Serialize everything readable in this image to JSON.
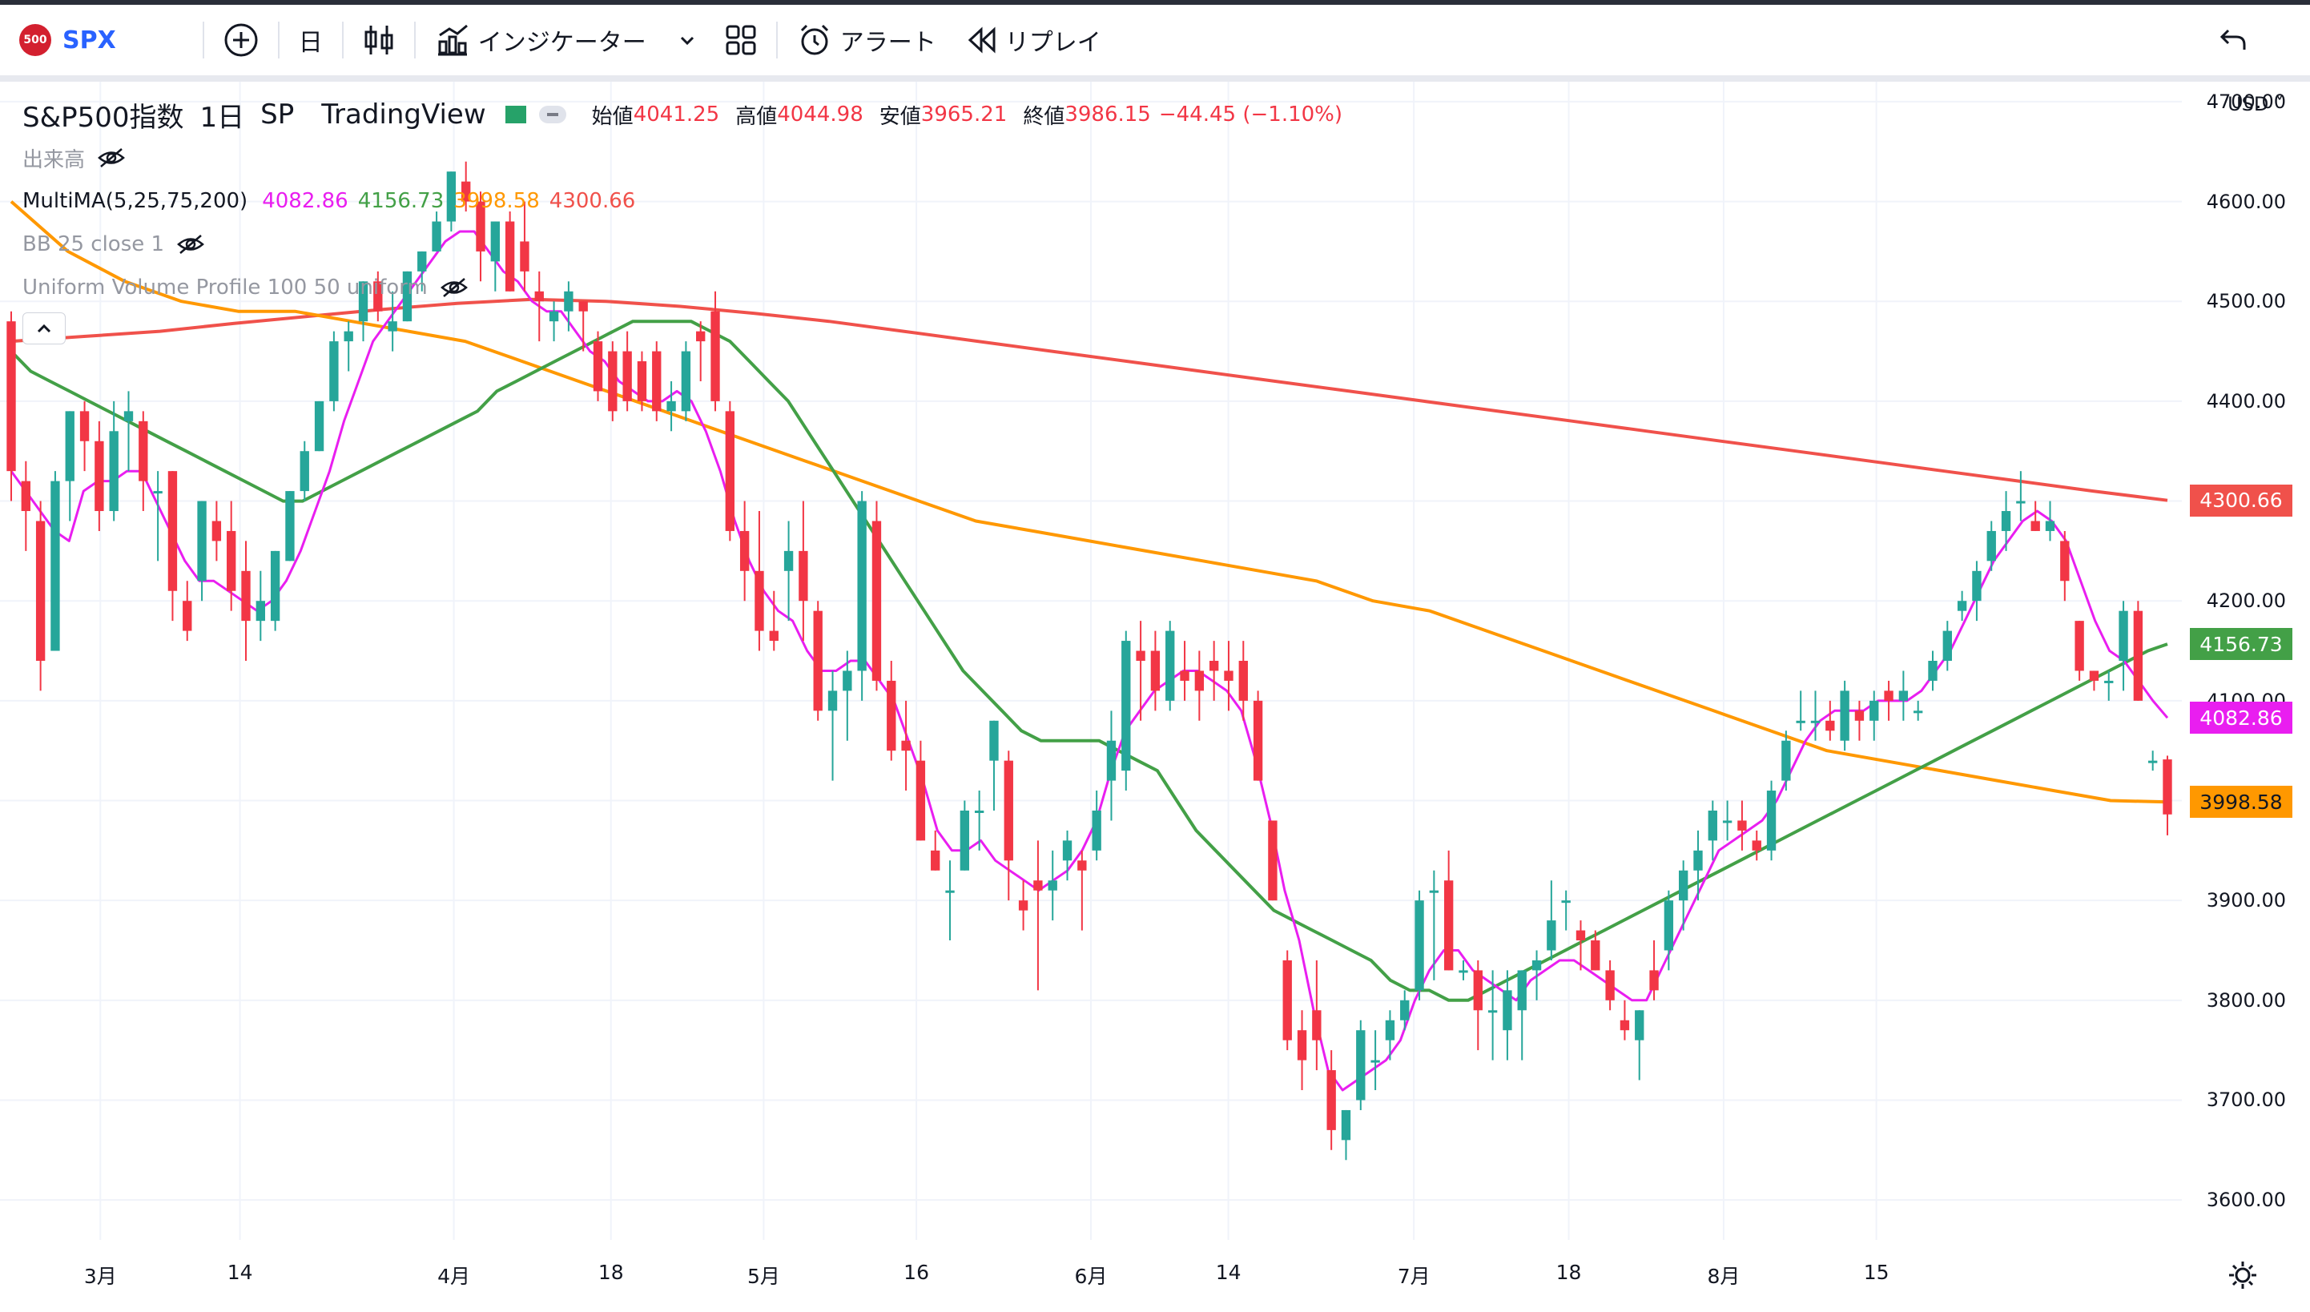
{
  "toolbar": {
    "symbol_badge": "500",
    "symbol": "SPX",
    "interval": "日",
    "indicators_label": "インジケーター",
    "alert_label": "アラート",
    "replay_label": "リプレイ"
  },
  "legend": {
    "instrument": "S&P500指数",
    "interval": "1日",
    "exchange": "SP",
    "source": "TradingView",
    "open_label": "始値",
    "open": "4041.25",
    "high_label": "高値",
    "high": "4044.98",
    "low_label": "安値",
    "low": "3965.21",
    "close_label": "終値",
    "close": "3986.15",
    "change": "−44.45 (−1.10%)",
    "volume_label": "出来高",
    "ma_label": "MultiMA(5,25,75,200)",
    "ma5": "4082.86",
    "ma25": "4156.73",
    "ma75": "3998.58",
    "ma200": "4300.66",
    "bb_label": "BB 25 close 1",
    "vp_label": "Uniform Volume Profile 100 50 uniform"
  },
  "price_axis": {
    "currency": "USD",
    "labels": [
      "4700.00",
      "4600.00",
      "4500.00",
      "4400.00",
      "4300.00",
      "4200.00",
      "4100.00",
      "3900.00",
      "3800.00",
      "3700.00",
      "3600.00"
    ],
    "tag_ma200": "4300.66",
    "tag_ma25": "4156.73",
    "tag_ma5": "4082.86",
    "tag_ma75": "3998.58"
  },
  "time_axis": {
    "labels": [
      "3月",
      "14",
      "4月",
      "18",
      "5月",
      "16",
      "6月",
      "14",
      "7月",
      "18",
      "8月",
      "15"
    ]
  },
  "colors": {
    "up": "#26a69a",
    "down": "#f23645",
    "ma5": "#e91ef0",
    "ma25": "#43a047",
    "ma75": "#ff9800",
    "ma200": "#f0514b"
  },
  "chart_data": {
    "type": "candlestick",
    "y_range": [
      3560,
      4720
    ],
    "candles": [
      [
        4480,
        4490,
        4300,
        4330
      ],
      [
        4320,
        4340,
        4250,
        4290
      ],
      [
        4280,
        4300,
        4110,
        4140
      ],
      [
        4150,
        4330,
        4150,
        4320
      ],
      [
        4320,
        4390,
        4280,
        4390
      ],
      [
        4390,
        4400,
        4330,
        4360
      ],
      [
        4360,
        4380,
        4270,
        4290
      ],
      [
        4290,
        4400,
        4280,
        4370
      ],
      [
        4380,
        4410,
        4330,
        4390
      ],
      [
        4380,
        4390,
        4290,
        4320
      ],
      [
        4310,
        4330,
        4240,
        4310
      ],
      [
        4330,
        4330,
        4180,
        4210
      ],
      [
        4200,
        4220,
        4160,
        4170
      ],
      [
        4220,
        4300,
        4200,
        4300
      ],
      [
        4280,
        4300,
        4240,
        4260
      ],
      [
        4270,
        4300,
        4190,
        4210
      ],
      [
        4230,
        4260,
        4140,
        4180
      ],
      [
        4180,
        4230,
        4160,
        4200
      ],
      [
        4180,
        4250,
        4170,
        4250
      ],
      [
        4240,
        4310,
        4240,
        4310
      ],
      [
        4310,
        4360,
        4300,
        4350
      ],
      [
        4350,
        4400,
        4350,
        4400
      ],
      [
        4400,
        4470,
        4390,
        4460
      ],
      [
        4460,
        4480,
        4430,
        4470
      ],
      [
        4480,
        4520,
        4460,
        4520
      ],
      [
        4520,
        4530,
        4480,
        4490
      ],
      [
        4470,
        4510,
        4450,
        4480
      ],
      [
        4480,
        4530,
        4480,
        4530
      ],
      [
        4530,
        4550,
        4510,
        4550
      ],
      [
        4550,
        4590,
        4550,
        4580
      ],
      [
        4580,
        4630,
        4570,
        4630
      ],
      [
        4620,
        4640,
        4590,
        4600
      ],
      [
        4600,
        4610,
        4520,
        4550
      ],
      [
        4540,
        4580,
        4510,
        4580
      ],
      [
        4580,
        4590,
        4510,
        4510
      ],
      [
        4560,
        4600,
        4510,
        4530
      ],
      [
        4510,
        4530,
        4460,
        4500
      ],
      [
        4480,
        4500,
        4460,
        4490
      ],
      [
        4490,
        4520,
        4470,
        4510
      ],
      [
        4500,
        4500,
        4450,
        4490
      ],
      [
        4460,
        4470,
        4400,
        4410
      ],
      [
        4450,
        4460,
        4380,
        4390
      ],
      [
        4450,
        4470,
        4390,
        4400
      ],
      [
        4440,
        4450,
        4390,
        4400
      ],
      [
        4450,
        4460,
        4380,
        4390
      ],
      [
        4390,
        4420,
        4370,
        4400
      ],
      [
        4390,
        4460,
        4380,
        4450
      ],
      [
        4470,
        4480,
        4420,
        4460
      ],
      [
        4490,
        4510,
        4390,
        4400
      ],
      [
        4390,
        4400,
        4260,
        4270
      ],
      [
        4270,
        4300,
        4200,
        4230
      ],
      [
        4230,
        4290,
        4150,
        4170
      ],
      [
        4170,
        4210,
        4150,
        4160
      ],
      [
        4230,
        4280,
        4180,
        4250
      ],
      [
        4250,
        4300,
        4160,
        4200
      ],
      [
        4190,
        4200,
        4080,
        4090
      ],
      [
        4090,
        4130,
        4020,
        4110
      ],
      [
        4110,
        4150,
        4060,
        4130
      ],
      [
        4130,
        4310,
        4100,
        4300
      ],
      [
        4280,
        4300,
        4110,
        4120
      ],
      [
        4120,
        4140,
        4040,
        4050
      ],
      [
        4060,
        4100,
        4010,
        4050
      ],
      [
        4040,
        4060,
        3960,
        3960
      ],
      [
        3950,
        3970,
        3930,
        3930
      ],
      [
        3910,
        3940,
        3860,
        3910
      ],
      [
        3930,
        4000,
        3930,
        3990
      ],
      [
        3990,
        4010,
        3950,
        3990
      ],
      [
        4040,
        4080,
        3990,
        4080
      ],
      [
        4040,
        4050,
        3900,
        3940
      ],
      [
        3900,
        3920,
        3870,
        3890
      ],
      [
        3920,
        3960,
        3810,
        3910
      ],
      [
        3910,
        3950,
        3880,
        3920
      ],
      [
        3940,
        3970,
        3920,
        3960
      ],
      [
        3940,
        3950,
        3870,
        3930
      ],
      [
        3950,
        4010,
        3940,
        3990
      ],
      [
        4020,
        4090,
        3980,
        4060
      ],
      [
        4030,
        4170,
        4010,
        4160
      ],
      [
        4150,
        4180,
        4080,
        4140
      ],
      [
        4150,
        4170,
        4090,
        4110
      ],
      [
        4100,
        4180,
        4090,
        4170
      ],
      [
        4130,
        4160,
        4100,
        4120
      ],
      [
        4130,
        4150,
        4080,
        4110
      ],
      [
        4140,
        4160,
        4100,
        4130
      ],
      [
        4130,
        4160,
        4090,
        4120
      ],
      [
        4140,
        4160,
        4080,
        4100
      ],
      [
        4100,
        4110,
        4020,
        4020
      ],
      [
        3980,
        3980,
        3900,
        3900
      ],
      [
        3840,
        3850,
        3750,
        3760
      ],
      [
        3770,
        3790,
        3710,
        3740
      ],
      [
        3790,
        3840,
        3730,
        3760
      ],
      [
        3730,
        3750,
        3650,
        3670
      ],
      [
        3660,
        3690,
        3640,
        3690
      ],
      [
        3700,
        3780,
        3690,
        3770
      ],
      [
        3740,
        3770,
        3710,
        3740
      ],
      [
        3760,
        3790,
        3740,
        3780
      ],
      [
        3780,
        3810,
        3770,
        3800
      ],
      [
        3810,
        3910,
        3800,
        3900
      ],
      [
        3910,
        3930,
        3820,
        3910
      ],
      [
        3920,
        3950,
        3830,
        3830
      ],
      [
        3830,
        3840,
        3820,
        3830
      ],
      [
        3830,
        3840,
        3750,
        3790
      ],
      [
        3790,
        3830,
        3740,
        3790
      ],
      [
        3770,
        3830,
        3740,
        3810
      ],
      [
        3790,
        3830,
        3740,
        3830
      ],
      [
        3830,
        3850,
        3800,
        3840
      ],
      [
        3850,
        3920,
        3840,
        3880
      ],
      [
        3900,
        3910,
        3870,
        3900
      ],
      [
        3870,
        3880,
        3830,
        3860
      ],
      [
        3860,
        3870,
        3830,
        3830
      ],
      [
        3830,
        3840,
        3790,
        3800
      ],
      [
        3780,
        3800,
        3760,
        3770
      ],
      [
        3760,
        3790,
        3720,
        3790
      ],
      [
        3830,
        3860,
        3800,
        3810
      ],
      [
        3850,
        3910,
        3830,
        3900
      ],
      [
        3900,
        3940,
        3870,
        3930
      ],
      [
        3930,
        3970,
        3900,
        3950
      ],
      [
        3960,
        4000,
        3940,
        3990
      ],
      [
        3980,
        4000,
        3960,
        3980
      ],
      [
        3980,
        4000,
        3950,
        3970
      ],
      [
        3960,
        3970,
        3940,
        3950
      ],
      [
        3950,
        4020,
        3940,
        4010
      ],
      [
        4020,
        4070,
        4010,
        4060
      ],
      [
        4080,
        4110,
        4070,
        4080
      ],
      [
        4080,
        4110,
        4060,
        4080
      ],
      [
        4080,
        4100,
        4060,
        4070
      ],
      [
        4060,
        4120,
        4050,
        4110
      ],
      [
        4090,
        4100,
        4060,
        4080
      ],
      [
        4080,
        4110,
        4060,
        4100
      ],
      [
        4110,
        4120,
        4080,
        4100
      ],
      [
        4100,
        4130,
        4080,
        4110
      ],
      [
        4090,
        4100,
        4080,
        4090
      ],
      [
        4120,
        4150,
        4110,
        4140
      ],
      [
        4140,
        4180,
        4130,
        4170
      ],
      [
        4190,
        4210,
        4180,
        4200
      ],
      [
        4200,
        4240,
        4180,
        4230
      ],
      [
        4240,
        4280,
        4230,
        4270
      ],
      [
        4270,
        4310,
        4250,
        4290
      ],
      [
        4300,
        4330,
        4280,
        4300
      ],
      [
        4280,
        4300,
        4270,
        4270
      ],
      [
        4270,
        4300,
        4260,
        4280
      ],
      [
        4260,
        4270,
        4200,
        4220
      ],
      [
        4180,
        4180,
        4120,
        4130
      ],
      [
        4130,
        4130,
        4110,
        4120
      ],
      [
        4120,
        4130,
        4100,
        4120
      ],
      [
        4140,
        4200,
        4110,
        4190
      ],
      [
        4190,
        4200,
        4100,
        4100
      ],
      [
        4040,
        4050,
        4030,
        4040
      ],
      [
        4041.25,
        4044.98,
        3965.21,
        3986.15
      ]
    ],
    "ma5": [
      4330,
      4310,
      4290,
      4270,
      4260,
      4310,
      4320,
      4320,
      4330,
      4330,
      4300,
      4270,
      4240,
      4220,
      4220,
      4210,
      4200,
      4190,
      4200,
      4220,
      4250,
      4290,
      4330,
      4380,
      4420,
      4460,
      4480,
      4500,
      4520,
      4540,
      4560,
      4570,
      4570,
      4550,
      4530,
      4520,
      4500,
      4490,
      4490,
      4470,
      4450,
      4440,
      4420,
      4410,
      4400,
      4400,
      4410,
      4400,
      4370,
      4330,
      4280,
      4240,
      4210,
      4190,
      4180,
      4150,
      4130,
      4130,
      4140,
      4140,
      4120,
      4100,
      4060,
      4020,
      3970,
      3950,
      3950,
      3960,
      3940,
      3930,
      3920,
      3910,
      3920,
      3930,
      3950,
      3980,
      4030,
      4070,
      4090,
      4110,
      4120,
      4130,
      4130,
      4120,
      4110,
      4090,
      4040,
      3980,
      3910,
      3860,
      3790,
      3730,
      3710,
      3720,
      3730,
      3740,
      3760,
      3800,
      3830,
      3850,
      3850,
      3830,
      3820,
      3810,
      3800,
      3820,
      3830,
      3840,
      3840,
      3830,
      3820,
      3810,
      3800,
      3800,
      3830,
      3860,
      3890,
      3920,
      3950,
      3960,
      3970,
      3980,
      4000,
      4030,
      4060,
      4080,
      4090,
      4090,
      4090,
      4100,
      4100,
      4100,
      4110,
      4130,
      4150,
      4180,
      4210,
      4240,
      4260,
      4280,
      4290,
      4280,
      4260,
      4220,
      4180,
      4150,
      4140,
      4120,
      4100,
      4082.86
    ],
    "ma25": [
      4450,
      4430,
      4420,
      4410,
      4400,
      4390,
      4380,
      4370,
      4360,
      4350,
      4340,
      4330,
      4320,
      4310,
      4300,
      4300,
      4310,
      4320,
      4330,
      4340,
      4350,
      4360,
      4370,
      4380,
      4390,
      4410,
      4420,
      4430,
      4440,
      4450,
      4460,
      4470,
      4480,
      4480,
      4480,
      4480,
      4470,
      4460,
      4440,
      4420,
      4400,
      4370,
      4340,
      4310,
      4280,
      4250,
      4220,
      4190,
      4160,
      4130,
      4110,
      4090,
      4070,
      4060,
      4060,
      4060,
      4060,
      4050,
      4040,
      4030,
      4000,
      3970,
      3950,
      3930,
      3910,
      3890,
      3880,
      3870,
      3860,
      3850,
      3840,
      3820,
      3810,
      3810,
      3800,
      3800,
      3810,
      3820,
      3830,
      3840,
      3850,
      3860,
      3870,
      3880,
      3890,
      3900,
      3910,
      3920,
      3930,
      3940,
      3950,
      3960,
      3970,
      3980,
      3990,
      4000,
      4010,
      4020,
      4030,
      4040,
      4050,
      4060,
      4070,
      4080,
      4090,
      4100,
      4110,
      4120,
      4130,
      4140,
      4150,
      4156.73
    ],
    "ma75": [
      4600,
      4550,
      4520,
      4500,
      4490,
      4490,
      4480,
      4470,
      4460,
      4440,
      4420,
      4400,
      4380,
      4360,
      4340,
      4320,
      4300,
      4280,
      4270,
      4260,
      4250,
      4240,
      4230,
      4220,
      4200,
      4190,
      4170,
      4150,
      4130,
      4110,
      4090,
      4070,
      4050,
      4040,
      4030,
      4020,
      4010,
      4000,
      3998.58
    ],
    "ma200": [
      4460,
      4465,
      4470,
      4478,
      4485,
      4492,
      4498,
      4502,
      4500,
      4495,
      4488,
      4480,
      4470,
      4460,
      4450,
      4440,
      4430,
      4420,
      4410,
      4400,
      4390,
      4380,
      4370,
      4360,
      4350,
      4340,
      4330,
      4320,
      4310,
      4300.66
    ]
  }
}
